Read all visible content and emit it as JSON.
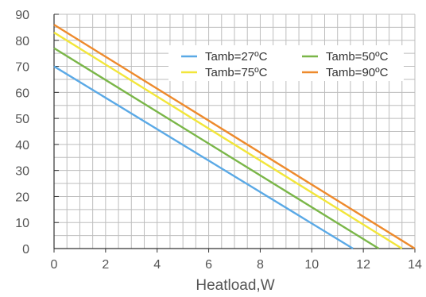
{
  "chart_data": {
    "type": "line",
    "title": "",
    "xlabel": "Heatload,W",
    "ylabel": "",
    "xlim": [
      0,
      14
    ],
    "ylim": [
      0,
      90
    ],
    "x_ticks": [
      0,
      2,
      4,
      6,
      8,
      10,
      12,
      14
    ],
    "y_ticks": [
      0,
      10,
      20,
      30,
      40,
      50,
      60,
      70,
      80,
      90
    ],
    "x_minor_step": 0.5,
    "y_minor_step": 5,
    "grid": true,
    "legend_position": "top-right",
    "series": [
      {
        "name": "Tamb=27ºC",
        "color": "#5aa9e6",
        "x": [
          0,
          11.6
        ],
        "y": [
          70,
          0
        ]
      },
      {
        "name": "Tamb=50ºC",
        "color": "#7ab648",
        "x": [
          0,
          12.6
        ],
        "y": [
          77,
          0
        ]
      },
      {
        "name": "Tamb=75ºC",
        "color": "#f2e63a",
        "x": [
          0,
          13.5
        ],
        "y": [
          83,
          0
        ]
      },
      {
        "name": "Tamb=90ºC",
        "color": "#ee8a2c",
        "x": [
          0,
          14
        ],
        "y": [
          86,
          0
        ]
      }
    ]
  }
}
